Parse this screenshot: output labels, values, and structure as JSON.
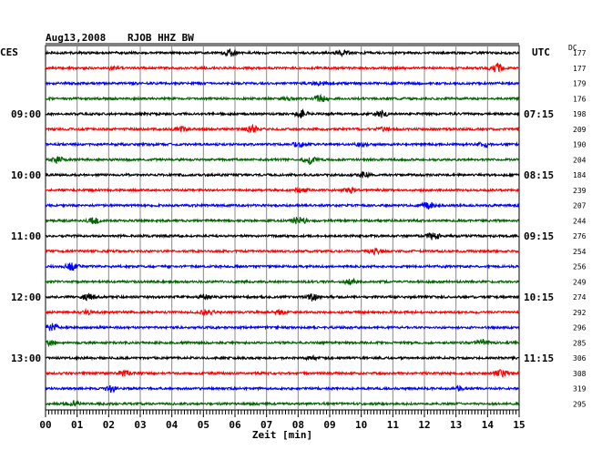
{
  "header": {
    "date": "Aug13,2008",
    "station": "RJOB HHZ BW",
    "left_tz": "CES",
    "right_tz": "UTC",
    "dc_label": "DC"
  },
  "chart_data": {
    "type": "line",
    "title": "Aug13,2008  RJOB HHZ BW",
    "xlabel": "Zeit [min]",
    "xlim": [
      0,
      15
    ],
    "x_ticks": [
      "00",
      "01",
      "02",
      "03",
      "04",
      "05",
      "06",
      "07",
      "08",
      "09",
      "10",
      "11",
      "12",
      "13",
      "14",
      "15"
    ],
    "trace_colors": [
      "#000000",
      "#ff0000",
      "#0000ff",
      "#006400"
    ],
    "rows": 24,
    "left_time_labels": [
      {
        "row": 4,
        "label": "09:00"
      },
      {
        "row": 8,
        "label": "10:00"
      },
      {
        "row": 12,
        "label": "11:00"
      },
      {
        "row": 16,
        "label": "12:00"
      },
      {
        "row": 20,
        "label": "13:00"
      }
    ],
    "right_time_labels": [
      {
        "row": 4,
        "label": "07:15"
      },
      {
        "row": 8,
        "label": "08:15"
      },
      {
        "row": 12,
        "label": "09:15"
      },
      {
        "row": 16,
        "label": "10:15"
      },
      {
        "row": 20,
        "label": "11:15"
      }
    ],
    "dc_offsets": [
      177,
      177,
      179,
      176,
      198,
      209,
      190,
      204,
      184,
      239,
      207,
      244,
      276,
      254,
      256,
      249,
      274,
      292,
      296,
      285,
      306,
      308,
      319,
      295
    ]
  }
}
